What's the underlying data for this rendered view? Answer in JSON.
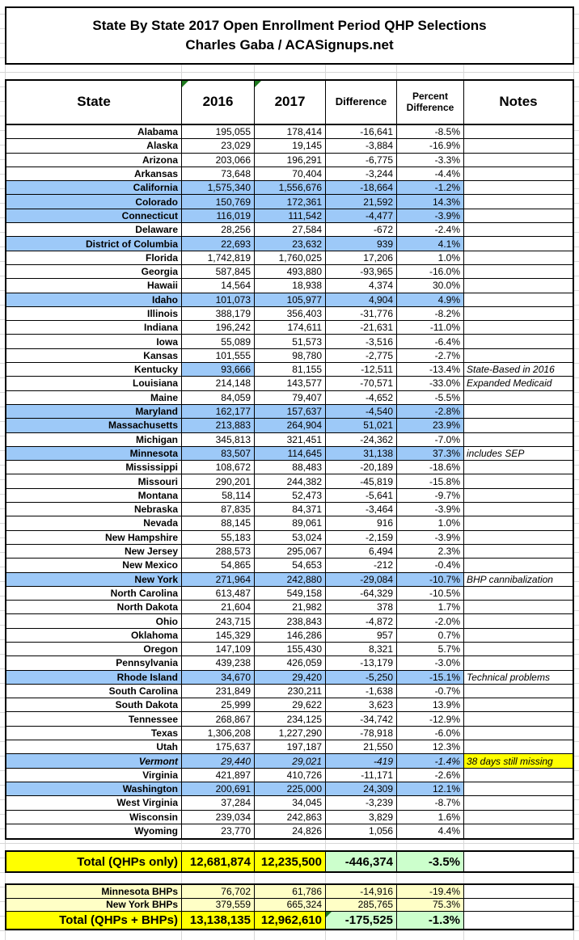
{
  "chart_data": {
    "type": "table",
    "title": "State By State 2017 Open Enrollment Period QHP Selections",
    "subtitle": "Charles Gaba / ACASignups.net",
    "columns": [
      "State",
      "2016",
      "2017",
      "Difference",
      "Percent Difference",
      "Notes"
    ],
    "rows": [
      {
        "state": "Alabama",
        "y2016": "195,055",
        "y2017": "178,414",
        "diff": "-16,641",
        "pct": "-8.5%",
        "note": "",
        "hl": "none"
      },
      {
        "state": "Alaska",
        "y2016": "23,029",
        "y2017": "19,145",
        "diff": "-3,884",
        "pct": "-16.9%",
        "note": "",
        "hl": "none"
      },
      {
        "state": "Arizona",
        "y2016": "203,066",
        "y2017": "196,291",
        "diff": "-6,775",
        "pct": "-3.3%",
        "note": "",
        "hl": "none"
      },
      {
        "state": "Arkansas",
        "y2016": "73,648",
        "y2017": "70,404",
        "diff": "-3,244",
        "pct": "-4.4%",
        "note": "",
        "hl": "none"
      },
      {
        "state": "California",
        "y2016": "1,575,340",
        "y2017": "1,556,676",
        "diff": "-18,664",
        "pct": "-1.2%",
        "note": "",
        "hl": "blue"
      },
      {
        "state": "Colorado",
        "y2016": "150,769",
        "y2017": "172,361",
        "diff": "21,592",
        "pct": "14.3%",
        "note": "",
        "hl": "blue"
      },
      {
        "state": "Connecticut",
        "y2016": "116,019",
        "y2017": "111,542",
        "diff": "-4,477",
        "pct": "-3.9%",
        "note": "",
        "hl": "blue"
      },
      {
        "state": "Delaware",
        "y2016": "28,256",
        "y2017": "27,584",
        "diff": "-672",
        "pct": "-2.4%",
        "note": "",
        "hl": "none"
      },
      {
        "state": "District of Columbia",
        "y2016": "22,693",
        "y2017": "23,632",
        "diff": "939",
        "pct": "4.1%",
        "note": "",
        "hl": "blue"
      },
      {
        "state": "Florida",
        "y2016": "1,742,819",
        "y2017": "1,760,025",
        "diff": "17,206",
        "pct": "1.0%",
        "note": "",
        "hl": "none"
      },
      {
        "state": "Georgia",
        "y2016": "587,845",
        "y2017": "493,880",
        "diff": "-93,965",
        "pct": "-16.0%",
        "note": "",
        "hl": "none"
      },
      {
        "state": "Hawaii",
        "y2016": "14,564",
        "y2017": "18,938",
        "diff": "4,374",
        "pct": "30.0%",
        "note": "",
        "hl": "none"
      },
      {
        "state": "Idaho",
        "y2016": "101,073",
        "y2017": "105,977",
        "diff": "4,904",
        "pct": "4.9%",
        "note": "",
        "hl": "blue"
      },
      {
        "state": "Illinois",
        "y2016": "388,179",
        "y2017": "356,403",
        "diff": "-31,776",
        "pct": "-8.2%",
        "note": "",
        "hl": "none"
      },
      {
        "state": "Indiana",
        "y2016": "196,242",
        "y2017": "174,611",
        "diff": "-21,631",
        "pct": "-11.0%",
        "note": "",
        "hl": "none"
      },
      {
        "state": "Iowa",
        "y2016": "55,089",
        "y2017": "51,573",
        "diff": "-3,516",
        "pct": "-6.4%",
        "note": "",
        "hl": "none"
      },
      {
        "state": "Kansas",
        "y2016": "101,555",
        "y2017": "98,780",
        "diff": "-2,775",
        "pct": "-2.7%",
        "note": "",
        "hl": "none"
      },
      {
        "state": "Kentucky",
        "y2016": "93,666",
        "y2017": "81,155",
        "diff": "-12,511",
        "pct": "-13.4%",
        "note": "State-Based in 2016",
        "hl": "blue2016"
      },
      {
        "state": "Louisiana",
        "y2016": "214,148",
        "y2017": "143,577",
        "diff": "-70,571",
        "pct": "-33.0%",
        "note": "Expanded Medicaid",
        "hl": "none"
      },
      {
        "state": "Maine",
        "y2016": "84,059",
        "y2017": "79,407",
        "diff": "-4,652",
        "pct": "-5.5%",
        "note": "",
        "hl": "none"
      },
      {
        "state": "Maryland",
        "y2016": "162,177",
        "y2017": "157,637",
        "diff": "-4,540",
        "pct": "-2.8%",
        "note": "",
        "hl": "blue"
      },
      {
        "state": "Massachusetts",
        "y2016": "213,883",
        "y2017": "264,904",
        "diff": "51,021",
        "pct": "23.9%",
        "note": "",
        "hl": "blue"
      },
      {
        "state": "Michigan",
        "y2016": "345,813",
        "y2017": "321,451",
        "diff": "-24,362",
        "pct": "-7.0%",
        "note": "",
        "hl": "none"
      },
      {
        "state": "Minnesota",
        "y2016": "83,507",
        "y2017": "114,645",
        "diff": "31,138",
        "pct": "37.3%",
        "note": "includes SEP",
        "hl": "blue"
      },
      {
        "state": "Mississippi",
        "y2016": "108,672",
        "y2017": "88,483",
        "diff": "-20,189",
        "pct": "-18.6%",
        "note": "",
        "hl": "none"
      },
      {
        "state": "Missouri",
        "y2016": "290,201",
        "y2017": "244,382",
        "diff": "-45,819",
        "pct": "-15.8%",
        "note": "",
        "hl": "none"
      },
      {
        "state": "Montana",
        "y2016": "58,114",
        "y2017": "52,473",
        "diff": "-5,641",
        "pct": "-9.7%",
        "note": "",
        "hl": "none"
      },
      {
        "state": "Nebraska",
        "y2016": "87,835",
        "y2017": "84,371",
        "diff": "-3,464",
        "pct": "-3.9%",
        "note": "",
        "hl": "none"
      },
      {
        "state": "Nevada",
        "y2016": "88,145",
        "y2017": "89,061",
        "diff": "916",
        "pct": "1.0%",
        "note": "",
        "hl": "none"
      },
      {
        "state": "New Hampshire",
        "y2016": "55,183",
        "y2017": "53,024",
        "diff": "-2,159",
        "pct": "-3.9%",
        "note": "",
        "hl": "none"
      },
      {
        "state": "New Jersey",
        "y2016": "288,573",
        "y2017": "295,067",
        "diff": "6,494",
        "pct": "2.3%",
        "note": "",
        "hl": "none"
      },
      {
        "state": "New Mexico",
        "y2016": "54,865",
        "y2017": "54,653",
        "diff": "-212",
        "pct": "-0.4%",
        "note": "",
        "hl": "none"
      },
      {
        "state": "New York",
        "y2016": "271,964",
        "y2017": "242,880",
        "diff": "-29,084",
        "pct": "-10.7%",
        "note": "BHP cannibalization",
        "hl": "blue"
      },
      {
        "state": "North Carolina",
        "y2016": "613,487",
        "y2017": "549,158",
        "diff": "-64,329",
        "pct": "-10.5%",
        "note": "",
        "hl": "none"
      },
      {
        "state": "North Dakota",
        "y2016": "21,604",
        "y2017": "21,982",
        "diff": "378",
        "pct": "1.7%",
        "note": "",
        "hl": "none"
      },
      {
        "state": "Ohio",
        "y2016": "243,715",
        "y2017": "238,843",
        "diff": "-4,872",
        "pct": "-2.0%",
        "note": "",
        "hl": "none"
      },
      {
        "state": "Oklahoma",
        "y2016": "145,329",
        "y2017": "146,286",
        "diff": "957",
        "pct": "0.7%",
        "note": "",
        "hl": "none"
      },
      {
        "state": "Oregon",
        "y2016": "147,109",
        "y2017": "155,430",
        "diff": "8,321",
        "pct": "5.7%",
        "note": "",
        "hl": "none"
      },
      {
        "state": "Pennsylvania",
        "y2016": "439,238",
        "y2017": "426,059",
        "diff": "-13,179",
        "pct": "-3.0%",
        "note": "",
        "hl": "none"
      },
      {
        "state": "Rhode Island",
        "y2016": "34,670",
        "y2017": "29,420",
        "diff": "-5,250",
        "pct": "-15.1%",
        "note": "Technical problems",
        "hl": "blue"
      },
      {
        "state": "South Carolina",
        "y2016": "231,849",
        "y2017": "230,211",
        "diff": "-1,638",
        "pct": "-0.7%",
        "note": "",
        "hl": "none"
      },
      {
        "state": "South Dakota",
        "y2016": "25,999",
        "y2017": "29,622",
        "diff": "3,623",
        "pct": "13.9%",
        "note": "",
        "hl": "none"
      },
      {
        "state": "Tennessee",
        "y2016": "268,867",
        "y2017": "234,125",
        "diff": "-34,742",
        "pct": "-12.9%",
        "note": "",
        "hl": "none"
      },
      {
        "state": "Texas",
        "y2016": "1,306,208",
        "y2017": "1,227,290",
        "diff": "-78,918",
        "pct": "-6.0%",
        "note": "",
        "hl": "none"
      },
      {
        "state": "Utah",
        "y2016": "175,637",
        "y2017": "197,187",
        "diff": "21,550",
        "pct": "12.3%",
        "note": "",
        "hl": "none"
      },
      {
        "state": "Vermont",
        "y2016": "29,440",
        "y2017": "29,021",
        "diff": "-419",
        "pct": "-1.4%",
        "note": "38 days still missing",
        "hl": "blue",
        "italic": true,
        "note_hl": true
      },
      {
        "state": "Virginia",
        "y2016": "421,897",
        "y2017": "410,726",
        "diff": "-11,171",
        "pct": "-2.6%",
        "note": "",
        "hl": "none"
      },
      {
        "state": "Washington",
        "y2016": "200,691",
        "y2017": "225,000",
        "diff": "24,309",
        "pct": "12.1%",
        "note": "",
        "hl": "blue"
      },
      {
        "state": "West Virginia",
        "y2016": "37,284",
        "y2017": "34,045",
        "diff": "-3,239",
        "pct": "-8.7%",
        "note": "",
        "hl": "none"
      },
      {
        "state": "Wisconsin",
        "y2016": "239,034",
        "y2017": "242,863",
        "diff": "3,829",
        "pct": "1.6%",
        "note": "",
        "hl": "none"
      },
      {
        "state": "Wyoming",
        "y2016": "23,770",
        "y2017": "24,826",
        "diff": "1,056",
        "pct": "4.4%",
        "note": "",
        "hl": "none"
      }
    ],
    "summary": {
      "total_qhps_only": {
        "label": "Total (QHPs only)",
        "y2016": "12,681,874",
        "y2017": "12,235,500",
        "diff": "-446,374",
        "pct": "-3.5%"
      },
      "minnesota_bhps": {
        "label": "Minnesota BHPs",
        "y2016": "76,702",
        "y2017": "61,786",
        "diff": "-14,916",
        "pct": "-19.4%"
      },
      "new_york_bhps": {
        "label": "New York BHPs",
        "y2016": "379,559",
        "y2017": "665,324",
        "diff": "285,765",
        "pct": "75.3%"
      },
      "total_qhps_bhps": {
        "label": "Total (QHPs + BHPs)",
        "y2016": "13,138,135",
        "y2017": "12,962,610",
        "diff": "-175,525",
        "pct": "-1.3%"
      }
    },
    "colors": {
      "state_exchange_row_blue": "#9dc9f8",
      "total_row_yellow": "#ffff00",
      "bhp_row_light_yellow": "#ffffc6",
      "delta_cell_green": "#ccffcc",
      "note_highlight_yellow": "#ffff00",
      "comment_triangle_green": "#1e7a1e",
      "gridline_gray": "#d7d7d7"
    },
    "layout": {
      "grid_on": true,
      "legend_position": "none"
    }
  }
}
